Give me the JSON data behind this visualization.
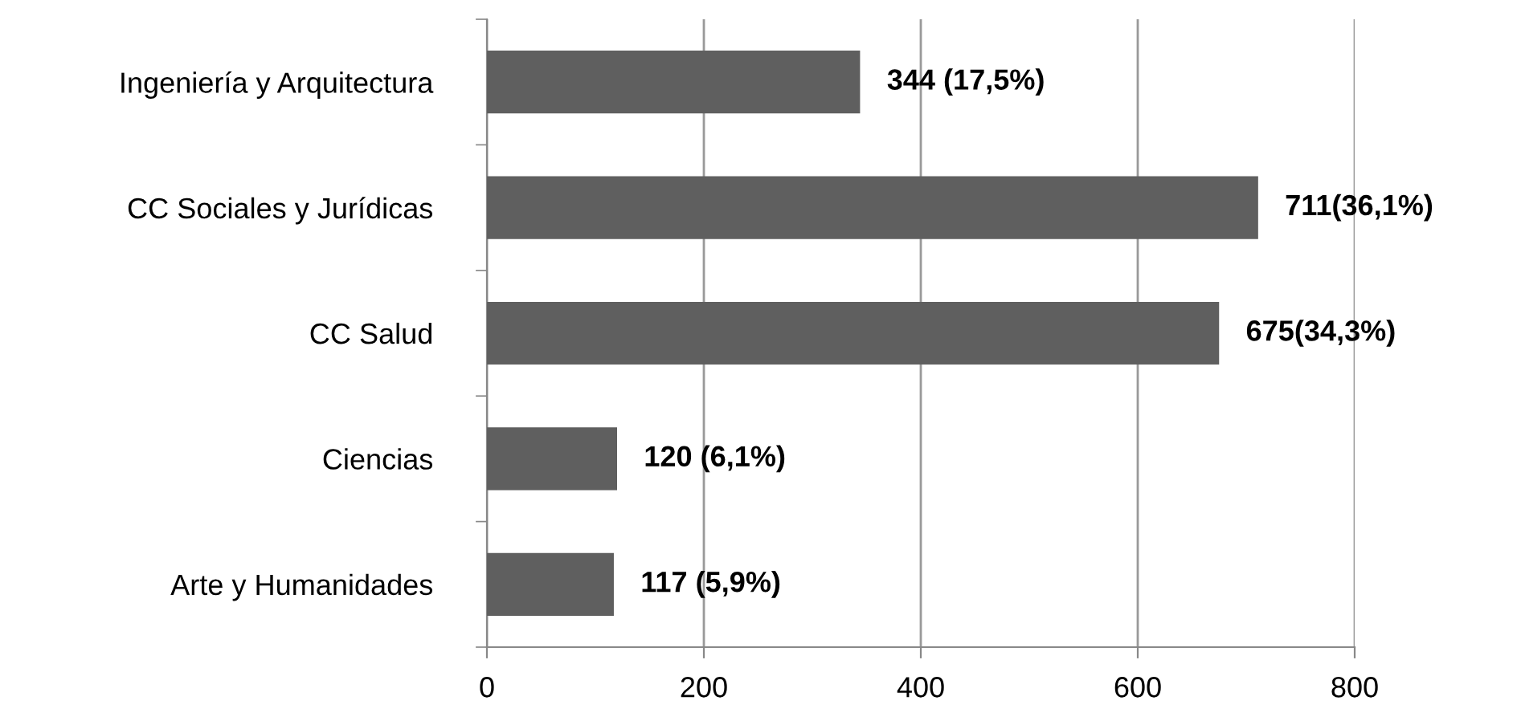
{
  "chart_data": {
    "type": "bar",
    "orientation": "horizontal",
    "categories": [
      "Ingeniería y Arquitectura",
      "CC Sociales y Jurídicas",
      "CC Salud",
      "Ciencias",
      "Arte y Humanidades"
    ],
    "values": [
      344,
      711,
      675,
      120,
      117
    ],
    "value_labels": [
      "344 (17,5%)",
      "711(36,1%)",
      "675(34,3%)",
      "120 (6,1%)",
      "117 (5,9%)"
    ],
    "color": "#5f5f5f",
    "xlim": [
      0,
      800
    ],
    "xticks": [
      0,
      200,
      400,
      600,
      800
    ],
    "grid": "x",
    "legend": false
  }
}
